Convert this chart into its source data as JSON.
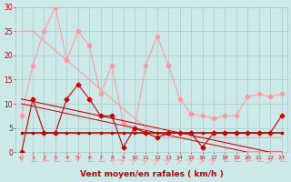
{
  "x": [
    0,
    1,
    2,
    3,
    4,
    5,
    6,
    7,
    8,
    9,
    10,
    11,
    12,
    13,
    14,
    15,
    16,
    17,
    18,
    19,
    20,
    21,
    22,
    23
  ],
  "line_light1": [
    7.5,
    18,
    25,
    30,
    19,
    25,
    22,
    12,
    18,
    6,
    5,
    18,
    24,
    18,
    11,
    8,
    7.5,
    7,
    7.5,
    7.5,
    11.5,
    12,
    11.5,
    12
  ],
  "line_light2_upper": [
    25,
    25,
    23,
    21,
    19,
    17,
    15,
    13,
    11,
    9,
    7,
    5,
    3,
    3,
    3,
    3,
    3,
    3,
    3,
    3,
    3,
    3,
    3,
    3
  ],
  "line_light3_lower": [
    11,
    10.5,
    10,
    9.5,
    9,
    8.5,
    8,
    7.5,
    7,
    6.5,
    6,
    5.5,
    5,
    4.5,
    4,
    3.5,
    3,
    2.5,
    2,
    1.5,
    1,
    0.5,
    0,
    0
  ],
  "line_dark1": [
    0,
    11,
    4,
    4,
    11,
    14,
    11,
    7.5,
    7.5,
    1,
    5,
    4,
    3,
    4,
    4,
    4,
    1,
    4,
    4,
    4,
    4,
    4,
    4,
    7.5
  ],
  "line_dark2_flat": [
    4,
    4,
    4,
    4,
    4,
    4,
    4,
    4,
    4,
    4,
    4,
    4,
    4,
    4,
    4,
    4,
    4,
    4,
    4,
    4,
    4,
    4,
    4,
    4
  ],
  "line_dark3_slope": [
    11,
    10.5,
    10,
    9.5,
    9,
    8.5,
    8,
    7.5,
    7,
    6.5,
    6,
    5.5,
    5,
    4.5,
    4,
    3.5,
    3,
    2.5,
    2,
    1.5,
    1,
    0.5,
    0,
    0
  ],
  "line_dark4_slope2": [
    10,
    9.5,
    9,
    8.5,
    8,
    7.5,
    7,
    6.5,
    6,
    5.5,
    5,
    4.5,
    4,
    3.5,
    3,
    2.5,
    2,
    1.5,
    1,
    0.5,
    0,
    0,
    0,
    0
  ],
  "xlabel": "Vent moyen/en rafales ( km/h )",
  "ylim": [
    0,
    30
  ],
  "xlim": [
    -0.5,
    23.5
  ],
  "yticks": [
    0,
    5,
    10,
    15,
    20,
    25,
    30
  ],
  "xticks": [
    0,
    1,
    2,
    3,
    4,
    5,
    6,
    7,
    8,
    9,
    10,
    11,
    12,
    13,
    14,
    15,
    16,
    17,
    18,
    19,
    20,
    21,
    22,
    23
  ],
  "bg_color": "#cce8e8",
  "grid_color": "#aacccc",
  "line_color_light": "#ff9999",
  "line_color_dark": "#cc0000",
  "marker_size": 2.5,
  "arrow_angles_deg": [
    180,
    225,
    210,
    225,
    225,
    180,
    225,
    225,
    315,
    45,
    45,
    45,
    45,
    45,
    60,
    45,
    90,
    45,
    225,
    225,
    210,
    225,
    90,
    225
  ]
}
